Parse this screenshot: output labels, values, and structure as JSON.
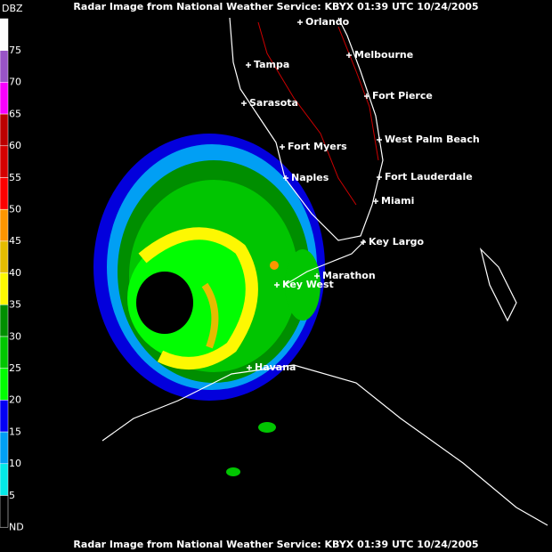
{
  "header": {
    "title": "Radar Image from National Weather Service: KBYX   01:39 UTC  10/24/2005"
  },
  "footer": {
    "title": "Radar Image from National Weather Service: KBYX   01:39 UTC  10/24/2005"
  },
  "legend": {
    "title": "DBZ",
    "levels": [
      {
        "label": "75",
        "color": "#fdfdfd"
      },
      {
        "label": "70",
        "color": "#9854c6"
      },
      {
        "label": "65",
        "color": "#f800fd"
      },
      {
        "label": "60",
        "color": "#bc0000"
      },
      {
        "label": "55",
        "color": "#d40000"
      },
      {
        "label": "50",
        "color": "#fd0000"
      },
      {
        "label": "45",
        "color": "#fd9500"
      },
      {
        "label": "40",
        "color": "#e5bc00"
      },
      {
        "label": "35",
        "color": "#fdf802"
      },
      {
        "label": "30",
        "color": "#008e00"
      },
      {
        "label": "25",
        "color": "#01c501"
      },
      {
        "label": "20",
        "color": "#02fd02"
      },
      {
        "label": "15",
        "color": "#0300f4"
      },
      {
        "label": "10",
        "color": "#019ff4"
      },
      {
        "label": "5",
        "color": "#04e9e7"
      },
      {
        "label": "ND",
        "color": "#000000"
      }
    ]
  },
  "cities": [
    {
      "label": "Orlando"
    },
    {
      "label": "Tampa"
    },
    {
      "label": "Melbourne"
    },
    {
      "label": "Fort Pierce"
    },
    {
      "label": "Sarasota"
    },
    {
      "label": "Fort Myers"
    },
    {
      "label": "West Palm Beach"
    },
    {
      "label": "Naples"
    },
    {
      "label": "Fort Lauderdale"
    },
    {
      "label": "Miami"
    },
    {
      "label": "Key Largo"
    },
    {
      "label": "Marathon"
    },
    {
      "label": "Key West"
    },
    {
      "label": "Havana"
    }
  ]
}
